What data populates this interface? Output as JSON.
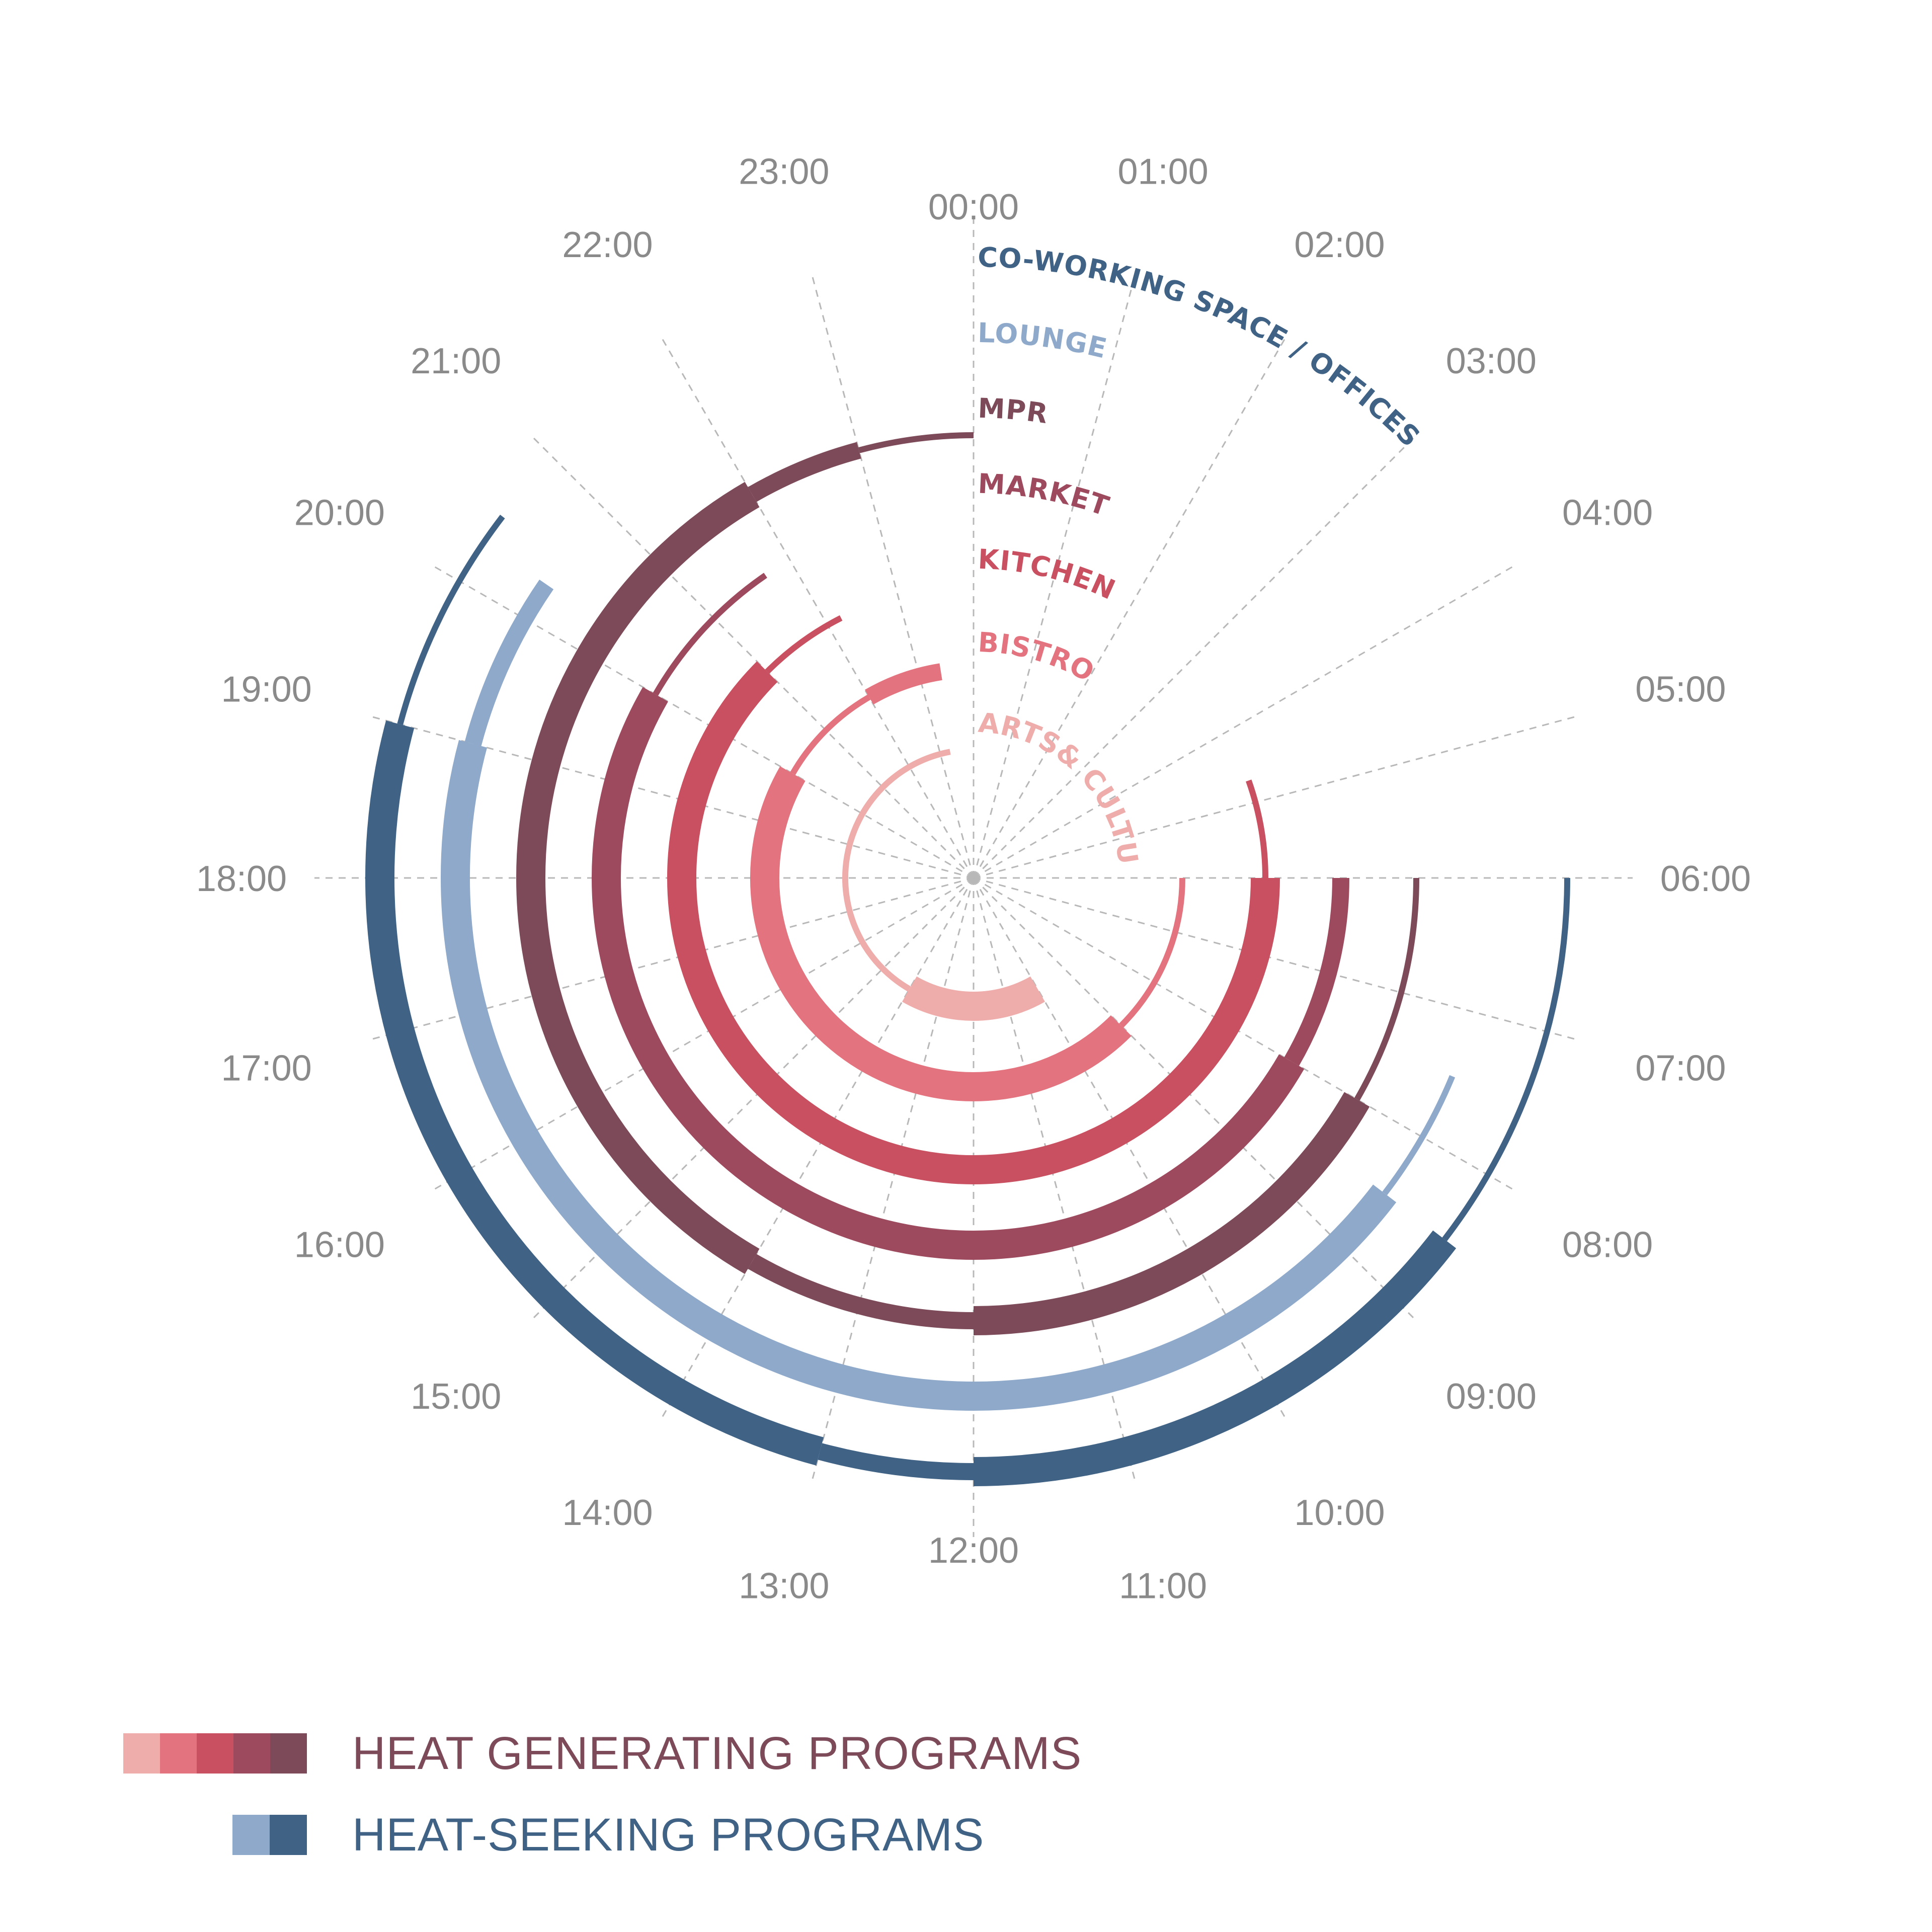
{
  "chart_data": {
    "type": "radial-timeline",
    "hours": [
      "00:00",
      "01:00",
      "02:00",
      "03:00",
      "04:00",
      "05:00",
      "06:00",
      "07:00",
      "08:00",
      "09:00",
      "10:00",
      "11:00",
      "12:00",
      "13:00",
      "14:00",
      "15:00",
      "16:00",
      "17:00",
      "18:00",
      "19:00",
      "20:00",
      "21:00",
      "22:00",
      "23:00"
    ],
    "rings": [
      {
        "name": "ARTS& CULTURE",
        "category": "heat-generating",
        "color": "#eeacaa",
        "segments": [
          {
            "start": 10,
            "end": 14,
            "intensity": "high"
          },
          {
            "start": 14,
            "end": 23.3,
            "intensity": "low"
          }
        ]
      },
      {
        "name": "BISTRO",
        "category": "heat-generating",
        "color": "#e3747f",
        "segments": [
          {
            "start": 6,
            "end": 9,
            "intensity": "low"
          },
          {
            "start": 9,
            "end": 20,
            "intensity": "high"
          },
          {
            "start": 20,
            "end": 22,
            "intensity": "low"
          },
          {
            "start": 22,
            "end": 23.4,
            "intensity": "medium"
          }
        ]
      },
      {
        "name": "KITCHEN",
        "category": "heat-generating",
        "color": "#c95060",
        "segments": [
          {
            "start": 4.7,
            "end": 6,
            "intensity": "low"
          },
          {
            "start": 6,
            "end": 18,
            "intensity": "high"
          },
          {
            "start": 18,
            "end": 21,
            "intensity": "high"
          },
          {
            "start": 21,
            "end": 22.2,
            "intensity": "low"
          }
        ]
      },
      {
        "name": "MARKET",
        "category": "heat-generating",
        "color": "#9d4a5e",
        "segments": [
          {
            "start": 6,
            "end": 8,
            "intensity": "medium"
          },
          {
            "start": 8,
            "end": 20,
            "intensity": "high"
          },
          {
            "start": 20,
            "end": 21.7,
            "intensity": "low"
          }
        ]
      },
      {
        "name": "MPR",
        "category": "heat-generating",
        "color": "#7c4a58",
        "segments": [
          {
            "start": 6,
            "end": 8,
            "intensity": "low"
          },
          {
            "start": 8,
            "end": 12,
            "intensity": "high"
          },
          {
            "start": 12,
            "end": 14,
            "intensity": "medium"
          },
          {
            "start": 14,
            "end": 22,
            "intensity": "high"
          },
          {
            "start": 22,
            "end": 23,
            "intensity": "medium"
          },
          {
            "start": 23,
            "end": 24,
            "intensity": "low"
          }
        ]
      },
      {
        "name": "LOUNGE",
        "category": "heat-seeking",
        "color": "#8ea9ca",
        "segments": [
          {
            "start": 7.5,
            "end": 8.5,
            "intensity": "low"
          },
          {
            "start": 8.5,
            "end": 19,
            "intensity": "high"
          },
          {
            "start": 19,
            "end": 20.3,
            "intensity": "medium"
          }
        ]
      },
      {
        "name": "CO-WORKING SPACE / OFFICES",
        "category": "heat-seeking",
        "color": "#3f6285",
        "segments": [
          {
            "start": 6,
            "end": 8.5,
            "intensity": "low"
          },
          {
            "start": 8.5,
            "end": 12,
            "intensity": "high"
          },
          {
            "start": 12,
            "end": 13,
            "intensity": "medium"
          },
          {
            "start": 13,
            "end": 19,
            "intensity": "high"
          },
          {
            "start": 19,
            "end": 20.5,
            "intensity": "low"
          }
        ]
      }
    ],
    "legend": [
      {
        "label": "HEAT GENERATING PROGRAMS",
        "colors": [
          "#eeacaa",
          "#e3747f",
          "#c95060",
          "#9d4a5e",
          "#7c4a58"
        ],
        "text_color": "#7c4a58"
      },
      {
        "label": "HEAT-SEEKING PROGRAMS",
        "colors": [
          "#8ea9ca",
          "#3f6285"
        ],
        "text_color": "#3f6285"
      }
    ]
  }
}
